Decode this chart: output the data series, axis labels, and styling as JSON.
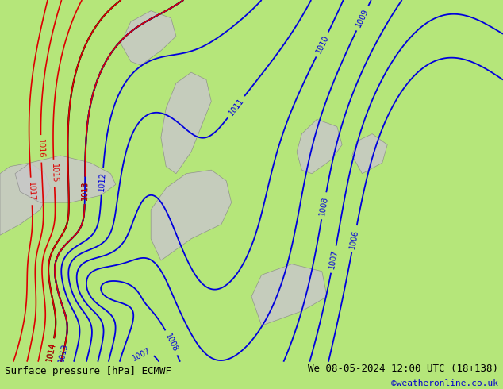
{
  "title_left": "Surface pressure [hPa] ECMWF",
  "title_right": "We 08-05-2024 12:00 UTC (18+138)",
  "title_right2": "©weatheronline.co.uk",
  "bg_color": "#b5e67a",
  "fig_width": 6.34,
  "fig_height": 4.9,
  "dpi": 100,
  "bottom_bar_color": "#ffffff",
  "title_fontsize": 9,
  "credit_fontsize": 8,
  "credit_color": "#0000cc",
  "sea_gray": "#c8c8c8",
  "black_line_color": "#000000",
  "blue_line_color": "#0000dd",
  "red_line_color": "#dd0000",
  "coast_color": "#888888",
  "label_fontsize": 7,
  "black_lw": 1.5,
  "blue_lw": 1.3,
  "red_lw": 1.2
}
